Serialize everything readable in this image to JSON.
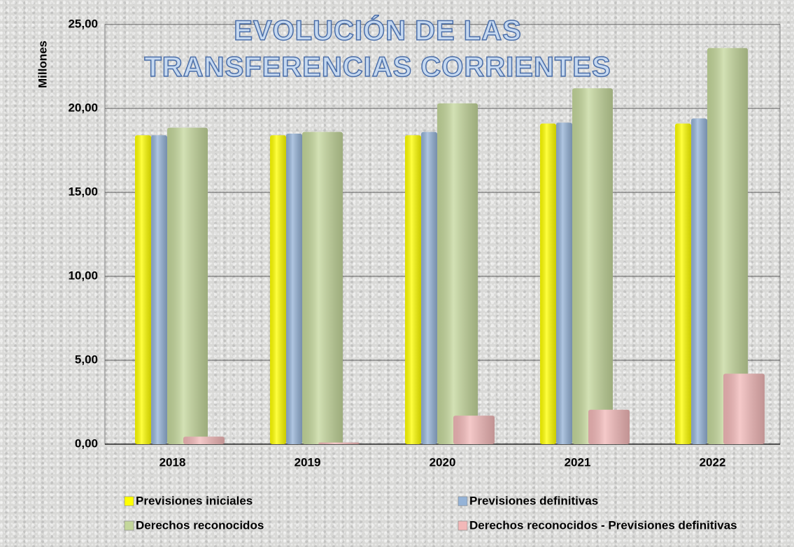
{
  "chart_data": {
    "type": "bar",
    "title": "EVOLUCIÓN DE LAS TRANSFERENCIAS CORRIENTES",
    "y_label": "Millones",
    "categories": [
      "2018",
      "2019",
      "2020",
      "2021",
      "2022"
    ],
    "series": [
      {
        "name": "Previsiones iniciales",
        "color": "#ffff00",
        "values": [
          18.4,
          18.4,
          18.4,
          19.1,
          19.1
        ]
      },
      {
        "name": "Previsiones definitivas",
        "color": "#95b3d7",
        "values": [
          18.4,
          18.5,
          18.6,
          19.15,
          19.4
        ]
      },
      {
        "name": "Derechos  reconocidos",
        "color": "#c4d79b",
        "values": [
          18.85,
          18.6,
          20.3,
          21.2,
          23.6
        ]
      },
      {
        "name": "Derechos reconocidos - Previsiones definitivas",
        "color": "#f2b8b8",
        "values": [
          0.45,
          0.1,
          1.7,
          2.05,
          4.2
        ]
      }
    ],
    "ylim": [
      0,
      25
    ],
    "yticks": [
      {
        "value": 0,
        "label": "0,00"
      },
      {
        "value": 5,
        "label": "5,00"
      },
      {
        "value": 10,
        "label": "10,00"
      },
      {
        "value": 15,
        "label": "15,00"
      },
      {
        "value": 20,
        "label": "20,00"
      },
      {
        "value": 25,
        "label": "25,00"
      }
    ],
    "grid": true,
    "legend": "bottom"
  }
}
